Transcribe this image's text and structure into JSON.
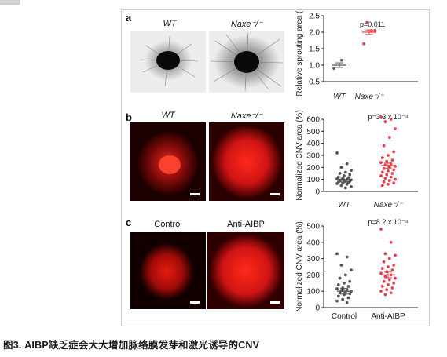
{
  "figure": {
    "caption": "图3. AIBP缺乏症会大大增加脉络膜发芽和激光诱导的CNV",
    "panels": [
      {
        "letter": "a",
        "col_labels": [
          "WT",
          "Naxe⁻/⁻"
        ]
      },
      {
        "letter": "b",
        "col_labels": [
          "WT",
          "Naxe⁻/⁻"
        ]
      },
      {
        "letter": "c",
        "col_labels": [
          "Control",
          "Anti-AIBP"
        ]
      }
    ]
  },
  "colors": {
    "control": "#555555",
    "treated": "#e8404a",
    "sprout_bg": "#ededed",
    "micro_bg": "#160000",
    "micro_red": "#e01818"
  },
  "chart_data": [
    {
      "type": "scatter",
      "ylabel": "Relative sprouting area (%)",
      "categories": [
        "WT",
        "Naxe⁻/⁻"
      ],
      "ylim": [
        0.5,
        2.5
      ],
      "yticks": [
        "0.5",
        "1.0",
        "1.5",
        "2.0",
        "2.5"
      ],
      "annotation": "p=0.011",
      "series": [
        {
          "values": [
            0.9,
            1.15
          ]
        },
        {
          "values": [
            1.65,
            2.05,
            2.3,
            2.05
          ]
        }
      ],
      "means": [
        1.0,
        2.0
      ]
    },
    {
      "type": "scatter",
      "ylabel": "Normalized CNV area (%)",
      "categories": [
        "WT",
        "Naxe⁻/⁻"
      ],
      "ylim": [
        0,
        600
      ],
      "yticks": [
        "0",
        "100",
        "200",
        "300",
        "400",
        "500",
        "600"
      ],
      "annotation": "p=3.3 x 10⁻⁴",
      "series": [
        {
          "values": [
            320,
            230,
            200,
            175,
            160,
            150,
            140,
            130,
            120,
            115,
            110,
            105,
            100,
            98,
            95,
            90,
            88,
            85,
            80,
            78,
            75,
            70,
            65,
            60,
            50,
            40,
            30
          ]
        },
        {
          "values": [
            620,
            600,
            580,
            520,
            450,
            380,
            330,
            300,
            280,
            260,
            250,
            240,
            230,
            220,
            210,
            200,
            190,
            180,
            170,
            160,
            150,
            140,
            130,
            120,
            110,
            100,
            90,
            80,
            70,
            60,
            50
          ]
        }
      ],
      "means": [
        100,
        215
      ]
    },
    {
      "type": "scatter",
      "ylabel": "Normalized CNV area (%)",
      "categories": [
        "Control",
        "Anti-AIBP"
      ],
      "ylim": [
        0,
        500
      ],
      "yticks": [
        "0",
        "100",
        "200",
        "300",
        "400",
        "500"
      ],
      "annotation": "p=8.2 x 10⁻⁴",
      "series": [
        {
          "values": [
            330,
            310,
            260,
            230,
            200,
            180,
            160,
            150,
            140,
            130,
            120,
            115,
            110,
            105,
            100,
            95,
            90,
            85,
            80,
            70,
            60,
            50,
            40,
            30
          ]
        },
        {
          "values": [
            480,
            400,
            330,
            320,
            300,
            280,
            260,
            250,
            240,
            230,
            220,
            210,
            200,
            190,
            180,
            170,
            160,
            150,
            140,
            130,
            120,
            110,
            100,
            90,
            80
          ]
        }
      ],
      "means": [
        100,
        200
      ]
    }
  ]
}
